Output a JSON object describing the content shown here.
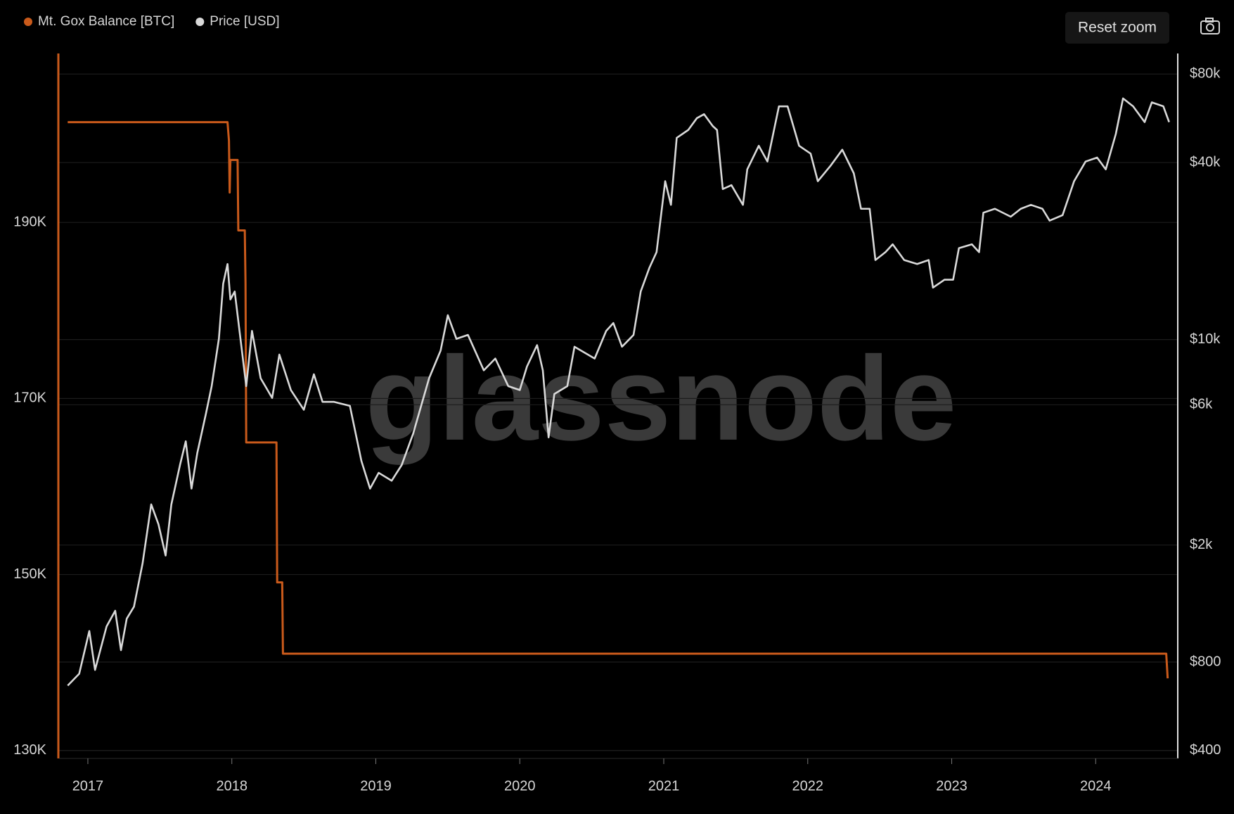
{
  "chart_data": {
    "type": "line",
    "watermark": "glassnode",
    "legend": "top-left",
    "grid": true,
    "xlim": [
      2016.8,
      2024.57
    ],
    "xticks": [
      2017,
      2018,
      2019,
      2020,
      2021,
      2022,
      2023,
      2024
    ],
    "ylim": [
      129100,
      209200
    ],
    "yticks": [
      {
        "value": 130000,
        "label": "130K"
      },
      {
        "value": 150000,
        "label": "150K"
      },
      {
        "value": 170000,
        "label": "170K"
      },
      {
        "value": 190000,
        "label": "190K"
      }
    ],
    "y2lim": [
      376,
      94000
    ],
    "y2scale": "log",
    "y2ticks": [
      {
        "value": 400,
        "label": "$400"
      },
      {
        "value": 800,
        "label": "$800"
      },
      {
        "value": 2000,
        "label": "$2k"
      },
      {
        "value": 6000,
        "label": "$6k"
      },
      {
        "value": 10000,
        "label": "$10k"
      },
      {
        "value": 40000,
        "label": "$40k"
      },
      {
        "value": 80000,
        "label": "$80k"
      }
    ],
    "series": [
      {
        "name": "Mt. Gox Balance [BTC]",
        "color": "#c95a1b",
        "x": [
          2016.86,
          2017.97,
          2017.98,
          2017.985,
          2017.99,
          2018.04,
          2018.045,
          2018.09,
          2018.095,
          2018.1,
          2018.31,
          2018.315,
          2018.35,
          2018.355,
          2024.49,
          2024.5
        ],
        "values": [
          201400,
          201400,
          199300,
          193400,
          197100,
          197100,
          189100,
          189100,
          183100,
          165000,
          165000,
          149100,
          149100,
          141000,
          141000,
          138200
        ]
      },
      {
        "name": "Price [USD]",
        "color": "#d9d9d9",
        "axis": "y2",
        "x": [
          2016.86,
          2016.94,
          2017.01,
          2017.05,
          2017.13,
          2017.19,
          2017.23,
          2017.27,
          2017.32,
          2017.38,
          2017.44,
          2017.49,
          2017.54,
          2017.58,
          2017.64,
          2017.68,
          2017.72,
          2017.76,
          2017.82,
          2017.86,
          2017.91,
          2017.94,
          2017.97,
          2017.99,
          2018.02,
          2018.06,
          2018.1,
          2018.14,
          2018.2,
          2018.28,
          2018.33,
          2018.41,
          2018.5,
          2018.57,
          2018.63,
          2018.71,
          2018.82,
          2018.9,
          2018.96,
          2019.02,
          2019.11,
          2019.18,
          2019.26,
          2019.37,
          2019.45,
          2019.5,
          2019.56,
          2019.64,
          2019.75,
          2019.83,
          2019.92,
          2020.0,
          2020.05,
          2020.12,
          2020.16,
          2020.2,
          2020.24,
          2020.33,
          2020.38,
          2020.52,
          2020.6,
          2020.65,
          2020.71,
          2020.79,
          2020.84,
          2020.9,
          2020.95,
          2021.01,
          2021.05,
          2021.09,
          2021.17,
          2021.23,
          2021.28,
          2021.34,
          2021.37,
          2021.41,
          2021.47,
          2021.55,
          2021.58,
          2021.66,
          2021.72,
          2021.8,
          2021.86,
          2021.94,
          2022.02,
          2022.07,
          2022.16,
          2022.24,
          2022.32,
          2022.37,
          2022.43,
          2022.47,
          2022.54,
          2022.59,
          2022.67,
          2022.76,
          2022.84,
          2022.87,
          2022.95,
          2023.01,
          2023.05,
          2023.14,
          2023.19,
          2023.22,
          2023.3,
          2023.41,
          2023.48,
          2023.55,
          2023.63,
          2023.68,
          2023.77,
          2023.85,
          2023.93,
          2024.01,
          2024.07,
          2024.14,
          2024.19,
          2024.26,
          2024.34,
          2024.39,
          2024.47,
          2024.51
        ],
        "values": [
          665,
          730,
          1020,
          752,
          1057,
          1195,
          878,
          1124,
          1233,
          1731,
          2750,
          2357,
          1842,
          2750,
          3745,
          4507,
          3112,
          4109,
          5594,
          6943,
          10056,
          15490,
          18070,
          13690,
          14570,
          10056,
          6943,
          10700,
          7386,
          6330,
          8890,
          6733,
          5770,
          7618,
          6137,
          6137,
          5950,
          3863,
          3112,
          3521,
          3310,
          3745,
          4795,
          7386,
          9167,
          12100,
          10056,
          10370,
          7858,
          8618,
          6943,
          6733,
          8100,
          9573,
          7858,
          4648,
          6528,
          6943,
          9454,
          8618,
          10700,
          11380,
          9454,
          10370,
          14570,
          17530,
          19830,
          34560,
          28720,
          48550,
          51630,
          56640,
          58420,
          53250,
          51630,
          32500,
          33510,
          28720,
          37920,
          45620,
          40330,
          62130,
          62130,
          45620,
          42900,
          34560,
          39100,
          44230,
          36760,
          27850,
          27850,
          18640,
          19830,
          21090,
          18640,
          18070,
          18640,
          15020,
          15980,
          15980,
          20450,
          21090,
          19830,
          27010,
          27850,
          26180,
          27850,
          28720,
          27850,
          25380,
          26500,
          34560,
          40330,
          41590,
          37920,
          50070,
          66110,
          62130,
          54920,
          64100,
          62130,
          54920
        ]
      }
    ]
  },
  "controls": {
    "reset_zoom": "Reset zoom"
  }
}
